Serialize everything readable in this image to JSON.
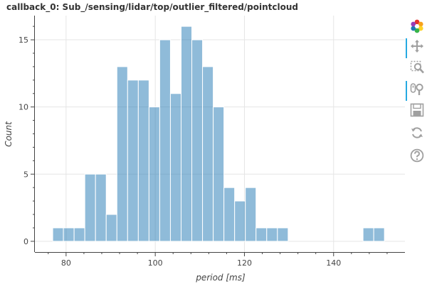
{
  "chart_data": {
    "type": "bar",
    "title": "callback_0: Sub_/sensing/lidar/top/outlier_filtered/pointcloud",
    "xlabel": "period [ms]",
    "ylabel": "Count",
    "xlim": [
      73,
      156
    ],
    "ylim": [
      -0.8,
      16.8
    ],
    "x_ticks": [
      80,
      100,
      120,
      140
    ],
    "y_ticks": [
      0,
      5,
      10,
      15
    ],
    "bin_width": 2.4,
    "bin_start": 77,
    "values": [
      1,
      1,
      1,
      5,
      5,
      2,
      13,
      12,
      12,
      10,
      15,
      11,
      16,
      15,
      13,
      10,
      4,
      3,
      4,
      1,
      1,
      1,
      0,
      0,
      0,
      0,
      0,
      0,
      0,
      1,
      1
    ],
    "bar_color": "#1f77b4",
    "grid": true
  },
  "toolbar": {
    "tools": [
      {
        "name": "bokeh-logo-icon",
        "active": false
      },
      {
        "name": "pan-tool-icon",
        "active": true
      },
      {
        "name": "box-zoom-tool-icon",
        "active": false
      },
      {
        "name": "wheel-zoom-tool-icon",
        "active": true
      },
      {
        "name": "save-tool-icon",
        "active": false
      },
      {
        "name": "reset-tool-icon",
        "active": false
      },
      {
        "name": "help-tool-icon",
        "active": false
      }
    ]
  }
}
